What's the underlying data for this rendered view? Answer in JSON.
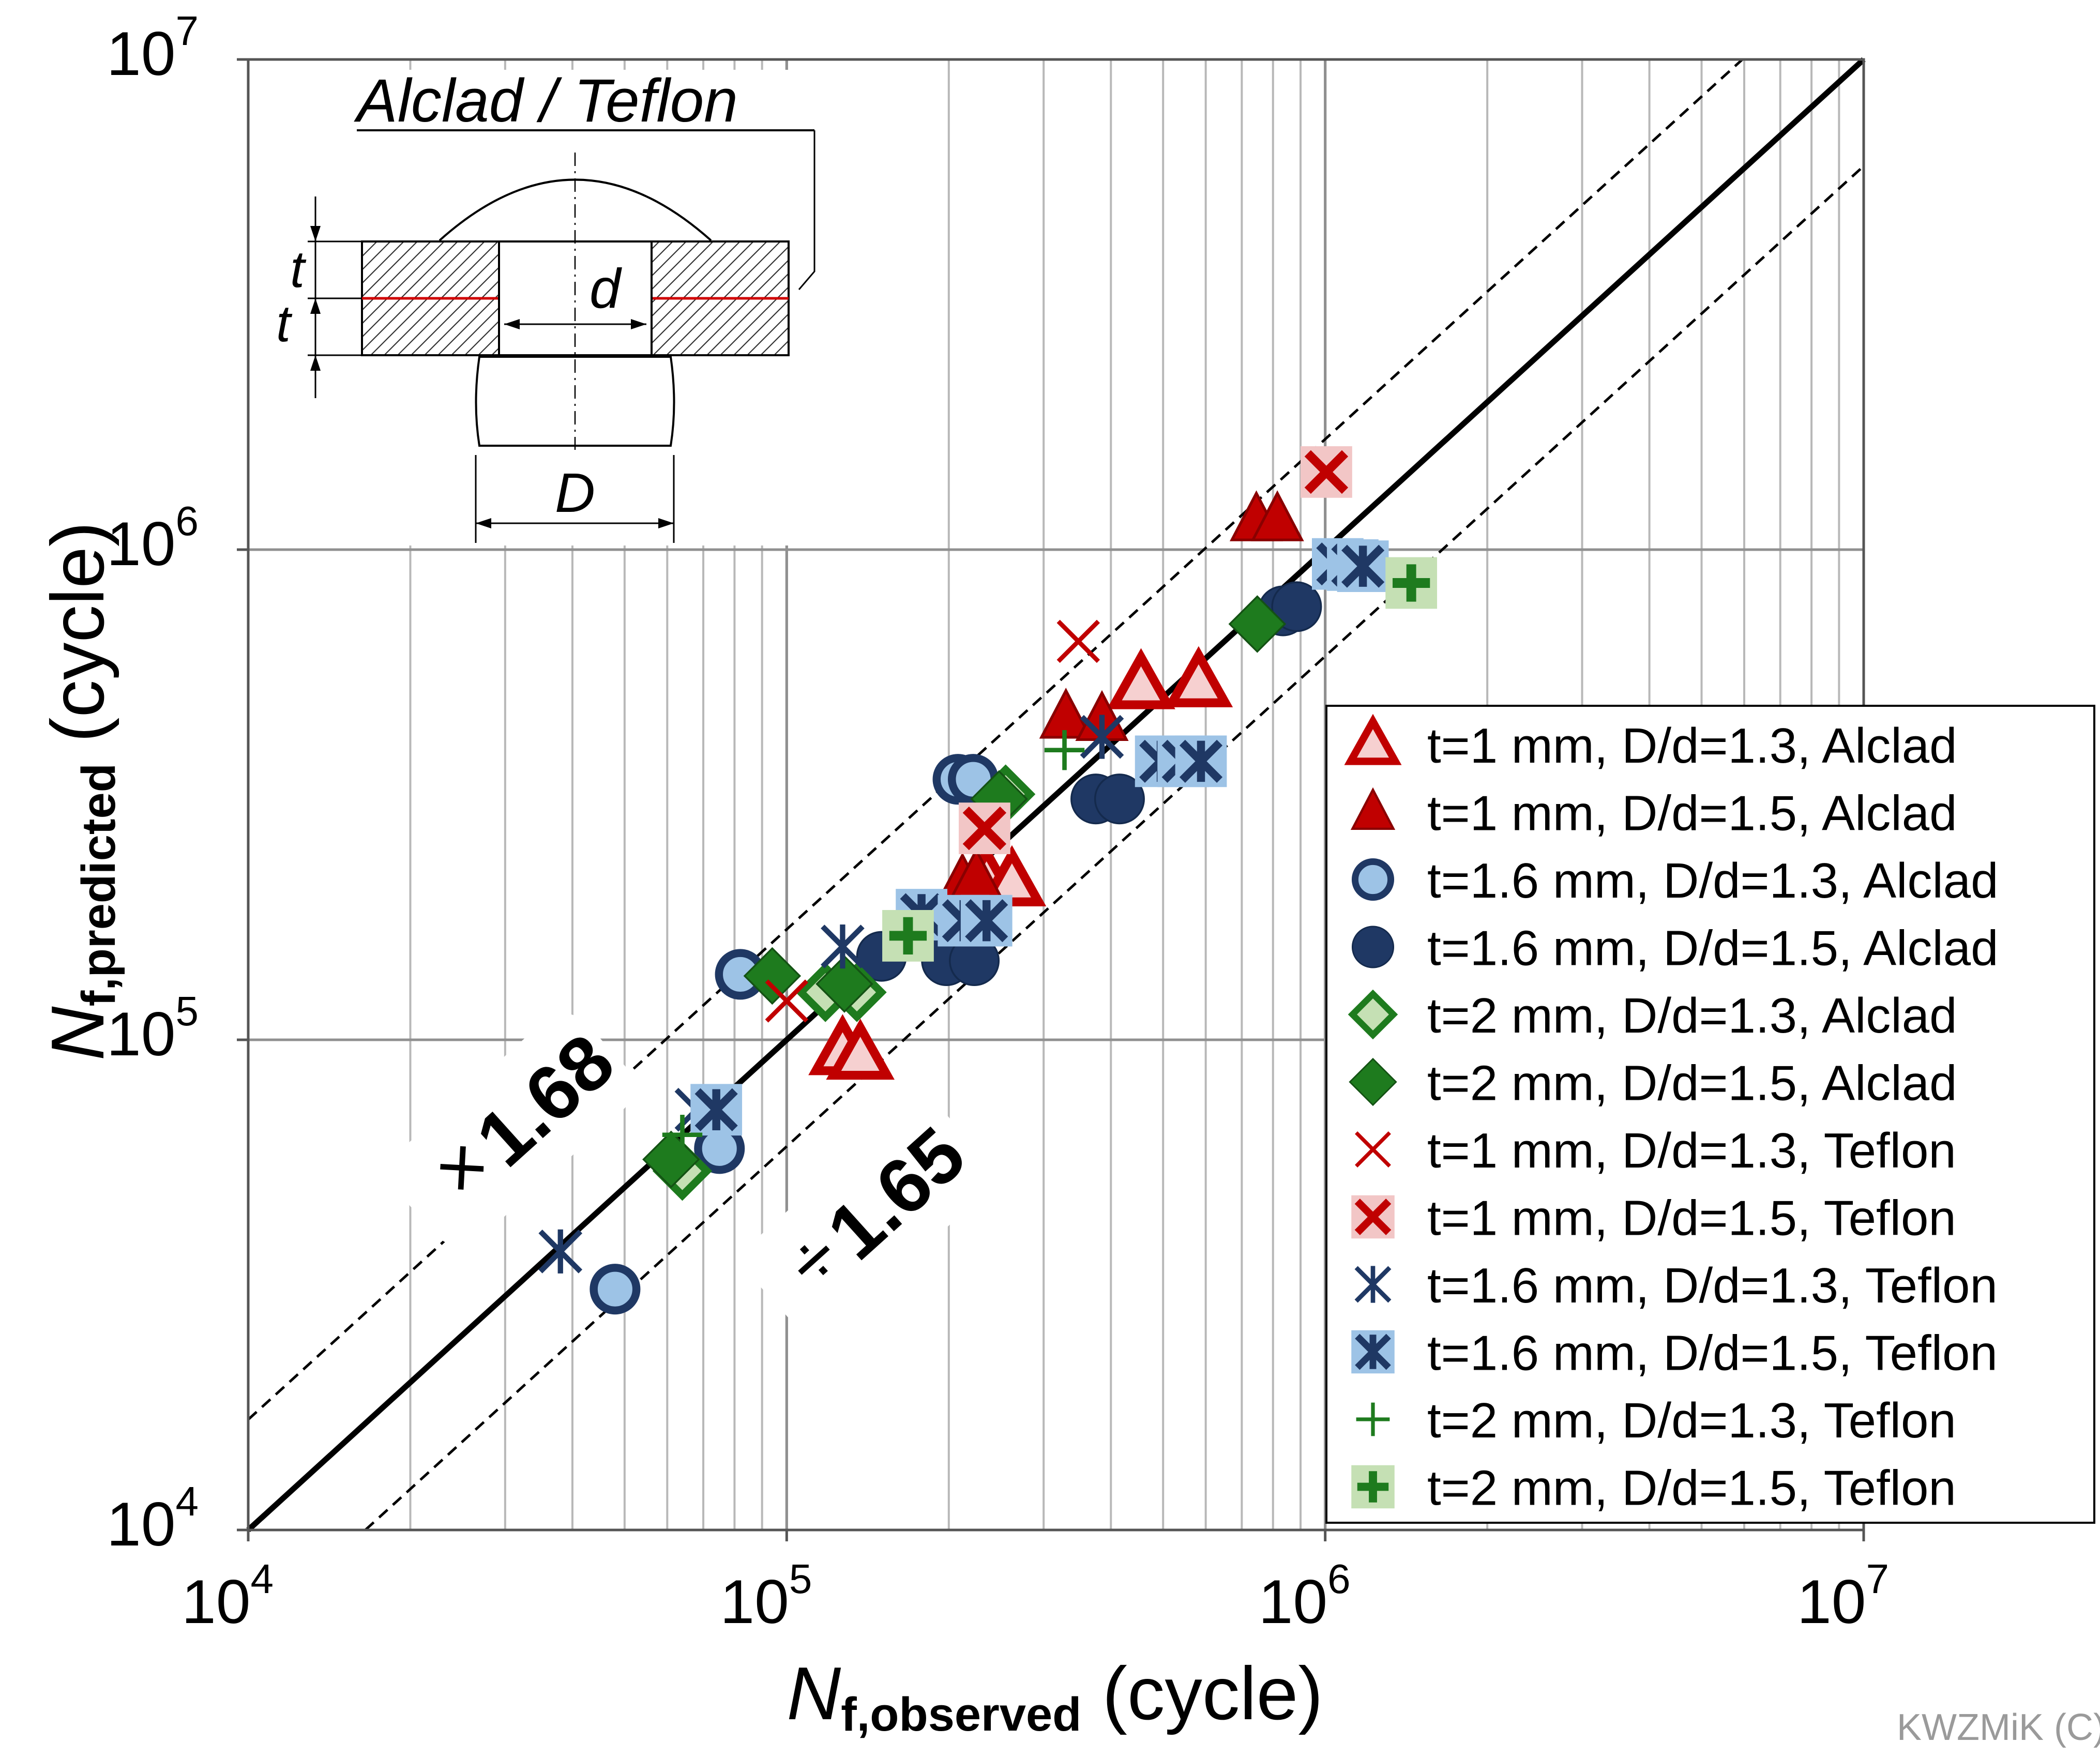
{
  "chart_data": {
    "type": "scatter",
    "x_scale": "log",
    "y_scale": "log",
    "xlim": [
      10000,
      10000000
    ],
    "ylim": [
      10000,
      10000000
    ],
    "grid": true,
    "legend_position": "right",
    "xlabel": {
      "base": "N",
      "sub": "f,observed",
      "rest": " (cycle)"
    },
    "ylabel": {
      "base": "N",
      "sub": "f,predicted",
      "rest": "  (cycle)"
    },
    "x_ticks": [
      {
        "value": 10000,
        "base": "10",
        "exp": "4"
      },
      {
        "value": 100000,
        "base": "10",
        "exp": "5"
      },
      {
        "value": 1000000,
        "base": "10",
        "exp": "6"
      },
      {
        "value": 10000000,
        "base": "10",
        "exp": "7"
      }
    ],
    "y_ticks": [
      {
        "value": 10000,
        "base": "10",
        "exp": "4"
      },
      {
        "value": 100000,
        "base": "10",
        "exp": "5"
      },
      {
        "value": 1000000,
        "base": "10",
        "exp": "6"
      },
      {
        "value": 10000000,
        "base": "10",
        "exp": "7"
      }
    ],
    "lines": [
      {
        "kind": "solid",
        "from": [
          10000,
          10000
        ],
        "to": [
          10000000,
          10000000
        ]
      },
      {
        "kind": "dashed",
        "from": [
          10000,
          16800
        ],
        "to": [
          5952381,
          10000000
        ]
      },
      {
        "kind": "dashed",
        "from": [
          16500,
          10000
        ],
        "to": [
          10000000,
          6060606
        ]
      }
    ],
    "band_labels": [
      {
        "op": "×",
        "value": "1.68"
      },
      {
        "op": "÷",
        "value": "1.65"
      }
    ],
    "series": [
      {
        "name": "t=1 mm, D/d=1.3, Alclad",
        "marker": "triangle-open",
        "color": "#c00000",
        "points": [
          [
            127000,
            95000
          ],
          [
            137000,
            93000
          ],
          [
            235000,
            212000
          ],
          [
            262000,
            210000
          ],
          [
            455000,
            530000
          ],
          [
            582000,
            535000
          ]
        ]
      },
      {
        "name": "t=1 mm, D/d=1.5, Alclad",
        "marker": "triangle-filled",
        "color": "#c00000",
        "points": [
          [
            212000,
            210000
          ],
          [
            225000,
            215000
          ],
          [
            330000,
            455000
          ],
          [
            385000,
            450000
          ],
          [
            745000,
            1150000
          ],
          [
            815000,
            1150000
          ]
        ]
      },
      {
        "name": "t=1.6 mm, D/d=1.3, Alclad",
        "marker": "circle-open",
        "color": "#1f3864",
        "points": [
          [
            48000,
            31000
          ],
          [
            75000,
            60000
          ],
          [
            82000,
            136000
          ],
          [
            208000,
            340000
          ],
          [
            222000,
            340000
          ]
        ]
      },
      {
        "name": "t=1.6 mm, D/d=1.5, Alclad",
        "marker": "circle-filled",
        "color": "#1f3864",
        "points": [
          [
            150000,
            148000
          ],
          [
            198000,
            145000
          ],
          [
            223000,
            145000
          ],
          [
            375000,
            310000
          ],
          [
            415000,
            310000
          ],
          [
            835000,
            750000
          ],
          [
            885000,
            765000
          ]
        ]
      },
      {
        "name": "t=2 mm, D/d=1.3, Alclad",
        "marker": "diamond-open",
        "color": "#1e7b1e",
        "points": [
          [
            64000,
            54000
          ],
          [
            118000,
            125000
          ],
          [
            135000,
            125000
          ],
          [
            255000,
            317000
          ]
        ]
      },
      {
        "name": "t=2 mm, D/d=1.5, Alclad",
        "marker": "diamond-filled",
        "color": "#1e7b1e",
        "points": [
          [
            61000,
            57000
          ],
          [
            94000,
            135000
          ],
          [
            128000,
            130000
          ],
          [
            248000,
            310000
          ],
          [
            748000,
            705000
          ]
        ]
      },
      {
        "name": "t=1 mm, D/d=1.3, Teflon",
        "marker": "x",
        "color": "#c00000",
        "points": [
          [
            100000,
            120000
          ],
          [
            348000,
            650000
          ]
        ]
      },
      {
        "name": "t=1 mm, D/d=1.5, Teflon",
        "marker": "x-boxed",
        "color": "#c00000",
        "points": [
          [
            233000,
            270000
          ],
          [
            1005000,
            1440000
          ]
        ]
      },
      {
        "name": "t=1.6 mm, D/d=1.3, Teflon",
        "marker": "asterisk",
        "color": "#1f3864",
        "points": [
          [
            38000,
            37000
          ],
          [
            68000,
            72000
          ],
          [
            127000,
            155000
          ],
          [
            385000,
            415000
          ]
        ]
      },
      {
        "name": "t=1.6 mm, D/d=1.5, Teflon",
        "marker": "asterisk-boxed",
        "color": "#1f3864",
        "points": [
          [
            74000,
            72000
          ],
          [
            178000,
            180000
          ],
          [
            213000,
            175000
          ],
          [
            235000,
            175000
          ],
          [
            495000,
            370000
          ],
          [
            545000,
            370000
          ],
          [
            588000,
            370000
          ],
          [
            1055000,
            935000
          ],
          [
            1125000,
            930000
          ],
          [
            1175000,
            925000
          ]
        ]
      },
      {
        "name": "t=2 mm, D/d=1.3, Teflon",
        "marker": "plus",
        "color": "#1e7b1e",
        "points": [
          [
            64000,
            64000
          ],
          [
            328000,
            390000
          ]
        ]
      },
      {
        "name": "t=2 mm, D/d=1.5, Teflon",
        "marker": "plus-boxed",
        "color": "#1e7b1e",
        "points": [
          [
            168000,
            163000
          ],
          [
            1445000,
            855000
          ]
        ]
      }
    ]
  },
  "inset": {
    "title": "Alclad / Teflon",
    "label_t_upper": "t",
    "label_t_lower": "t",
    "label_d": "d",
    "label_D": "D"
  },
  "watermark": "KWZMiK  (C)"
}
